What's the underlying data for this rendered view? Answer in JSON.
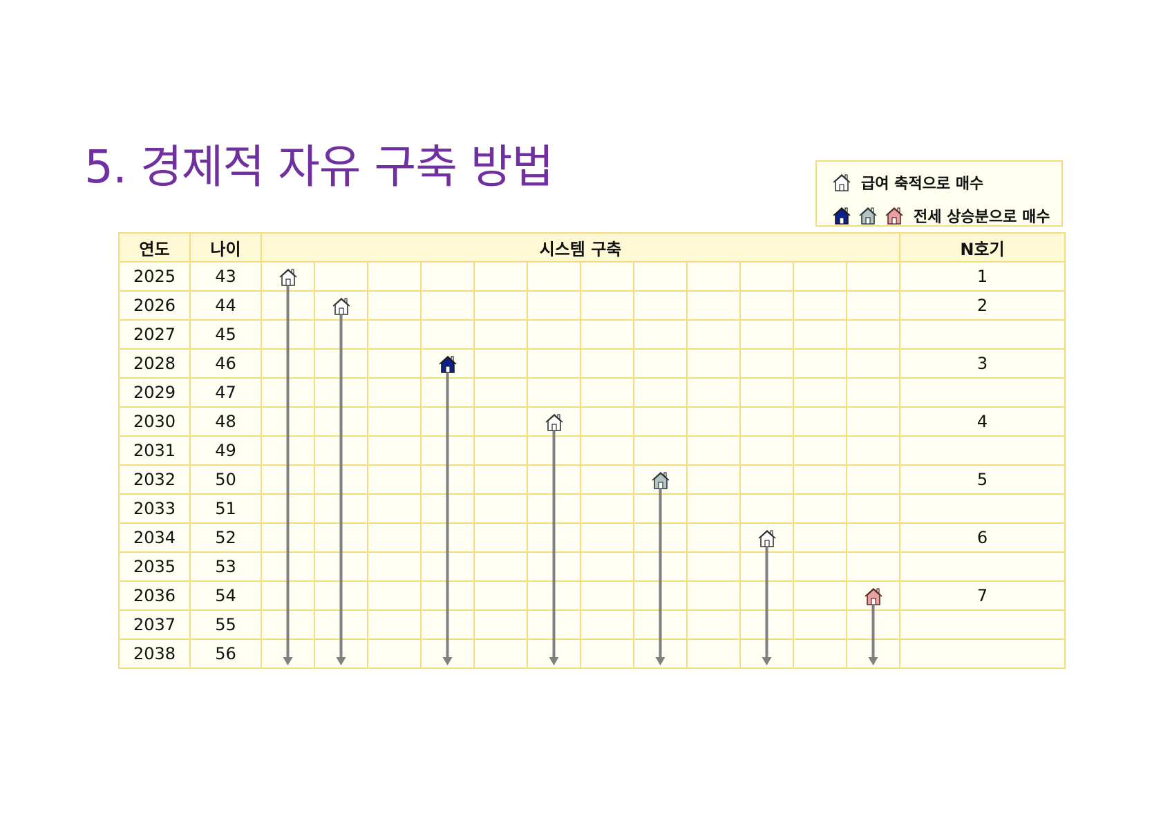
{
  "title": "5. 경제적 자유 구축 방법",
  "legend": {
    "row1": {
      "text": "급여 축적으로 매수",
      "icon": "house-outline-icon"
    },
    "row2": {
      "text": "전세 상승분으로 매수",
      "icons": [
        "house-blue-icon",
        "house-gray-icon",
        "house-pink-icon"
      ]
    }
  },
  "colors": {
    "title": "#7030a0",
    "border": "#f5dc7c",
    "header_bg": "#fef8d5",
    "arrow": "#808080",
    "house_blue": "#0b1f8f",
    "house_gray": "#b5c3c3",
    "house_pink": "#e7a1a1"
  },
  "table": {
    "headers": {
      "year": "연도",
      "age": "나이",
      "system": "시스템 구축",
      "nth": "N호기"
    },
    "rows": [
      {
        "year": "2025",
        "age": "43",
        "nth": "1"
      },
      {
        "year": "2026",
        "age": "44",
        "nth": "2"
      },
      {
        "year": "2027",
        "age": "45",
        "nth": ""
      },
      {
        "year": "2028",
        "age": "46",
        "nth": "3"
      },
      {
        "year": "2029",
        "age": "47",
        "nth": ""
      },
      {
        "year": "2030",
        "age": "48",
        "nth": "4"
      },
      {
        "year": "2031",
        "age": "49",
        "nth": ""
      },
      {
        "year": "2032",
        "age": "50",
        "nth": "5"
      },
      {
        "year": "2033",
        "age": "51",
        "nth": ""
      },
      {
        "year": "2034",
        "age": "52",
        "nth": "6"
      },
      {
        "year": "2035",
        "age": "53",
        "nth": ""
      },
      {
        "year": "2036",
        "age": "54",
        "nth": "7"
      },
      {
        "year": "2037",
        "age": "55",
        "nth": ""
      },
      {
        "year": "2038",
        "age": "56",
        "nth": ""
      }
    ],
    "purchases": [
      {
        "row": 0,
        "col": 0,
        "icon": "house-outline-icon"
      },
      {
        "row": 1,
        "col": 1,
        "icon": "house-outline-icon"
      },
      {
        "row": 3,
        "col": 3,
        "icon": "house-blue-icon"
      },
      {
        "row": 5,
        "col": 5,
        "icon": "house-outline-icon"
      },
      {
        "row": 7,
        "col": 7,
        "icon": "house-gray-icon"
      },
      {
        "row": 9,
        "col": 9,
        "icon": "house-outline-icon"
      },
      {
        "row": 11,
        "col": 11,
        "icon": "house-pink-icon"
      }
    ]
  }
}
